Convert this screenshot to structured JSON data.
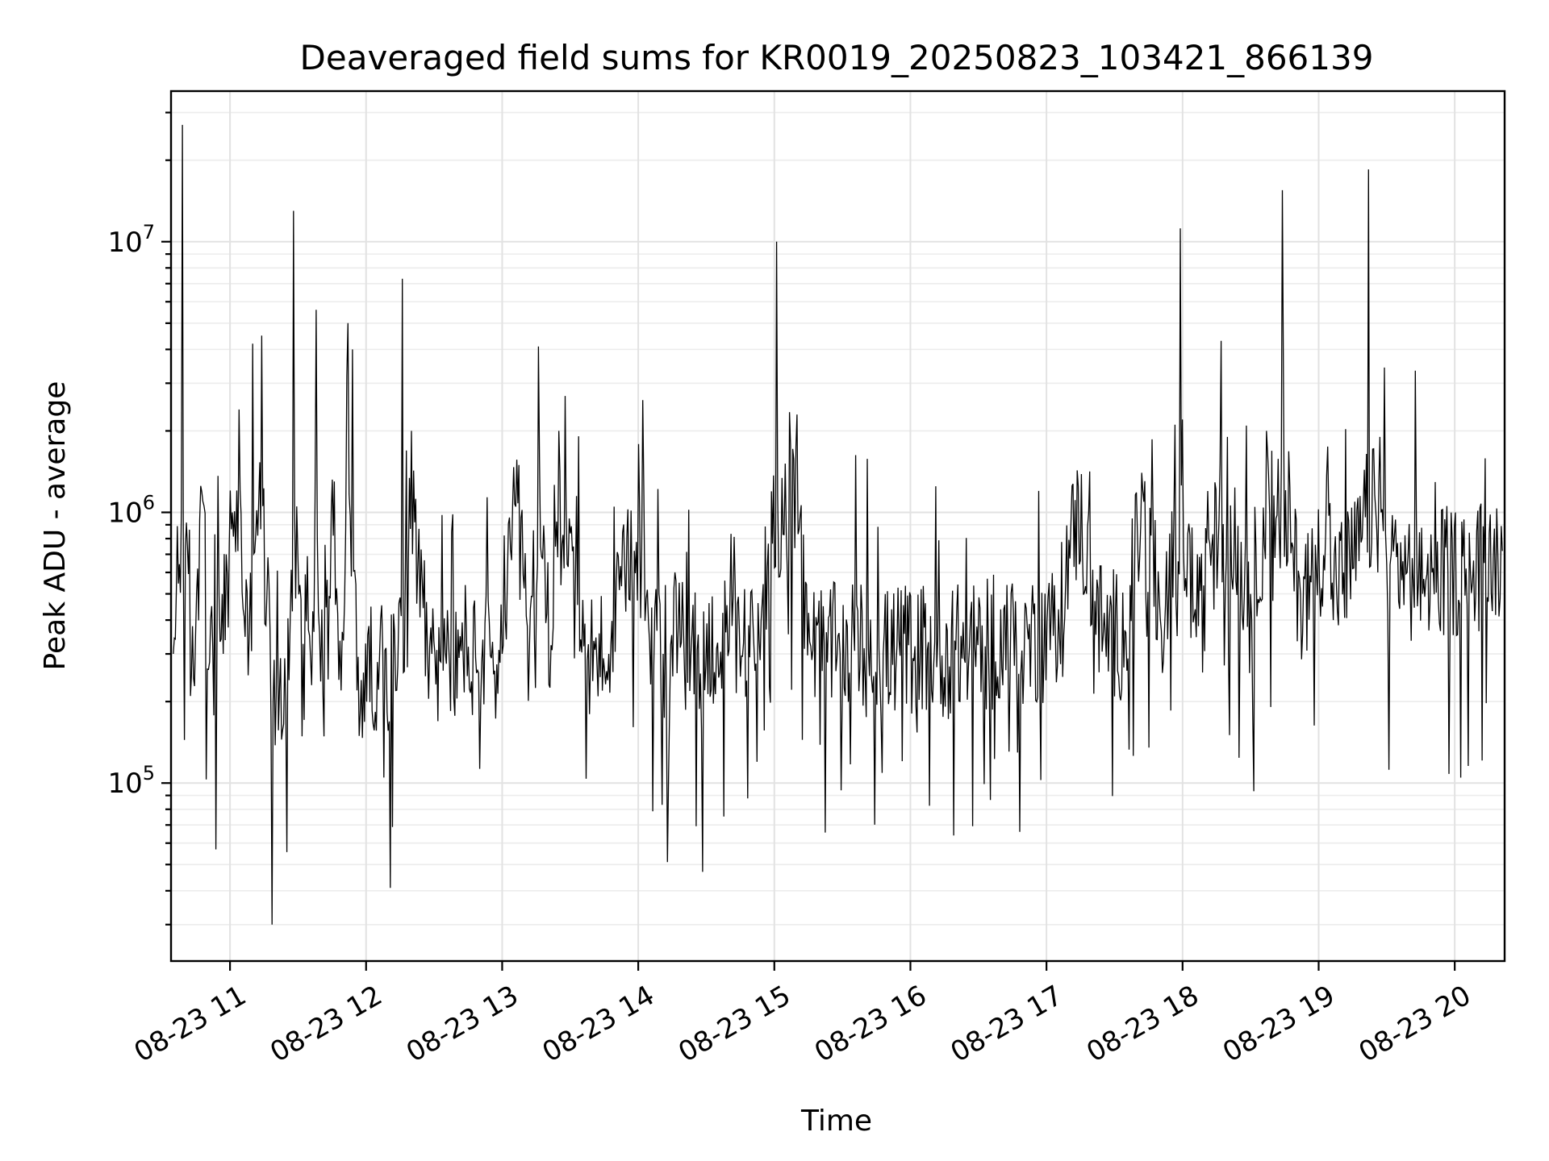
{
  "chart_data": {
    "type": "line",
    "title": "Deaveraged field sums for KR0019_20250823_103421_866139",
    "xlabel": "Time",
    "ylabel": "Peak ADU - average",
    "x_ticks": [
      "08-23 11",
      "08-23 12",
      "08-23 13",
      "08-23 14",
      "08-23 15",
      "08-23 16",
      "08-23 17",
      "08-23 18",
      "08-23 19",
      "08-23 20"
    ],
    "x_tick_hours": [
      11,
      12,
      13,
      14,
      15,
      16,
      17,
      18,
      19,
      20
    ],
    "y_ticks": [
      {
        "base": "10",
        "exp": "5",
        "value": 100000
      },
      {
        "base": "10",
        "exp": "6",
        "value": 1000000
      },
      {
        "base": "10",
        "exp": "7",
        "value": 10000000
      }
    ],
    "xlim": [
      "08-23 10:34",
      "08-23 20:22"
    ],
    "ylim": [
      22000,
      36000000
    ],
    "yscale": "log",
    "grid": true,
    "series": [
      {
        "color": "#000000",
        "x": [
          "10:35",
          "10:39",
          "10:43",
          "10:48",
          "10:51",
          "10:57",
          "11:01",
          "11:04",
          "11:08",
          "11:10",
          "11:14",
          "11:19",
          "11:26",
          "11:28",
          "11:36",
          "11:38",
          "11:41",
          "11:46",
          "11:49",
          "11:52",
          "11:54",
          "11:56",
          "12:05",
          "12:14",
          "12:16",
          "12:20",
          "12:29",
          "12:33",
          "12:34",
          "12:41",
          "12:51",
          "13:00",
          "13:06",
          "13:12",
          "13:16",
          "13:22",
          "13:25",
          "13:36",
          "13:39",
          "13:47",
          "14:02",
          "14:05",
          "14:11",
          "14:19",
          "14:26",
          "14:35",
          "14:40",
          "14:51",
          "15:01",
          "15:10",
          "15:17",
          "15:22",
          "15:29",
          "15:34",
          "15:48",
          "16:02",
          "16:13",
          "16:20",
          "16:33",
          "16:43",
          "16:52",
          "17:03",
          "17:14",
          "17:25",
          "17:35",
          "17:42",
          "17:52",
          "17:59",
          "18:07",
          "18:17",
          "18:30",
          "18:37",
          "18:44",
          "18:52",
          "18:59",
          "19:04",
          "19:06",
          "19:11",
          "19:15",
          "19:22",
          "19:27",
          "19:30",
          "19:32",
          "19:39",
          "19:44",
          "19:50",
          "19:57",
          "20:05",
          "20:13",
          "20:17",
          "20:19",
          "20:21"
        ],
        "y": [
          300000,
          27000000,
          250000,
          1100000,
          280000,
          300000,
          1000000,
          2400000,
          250000,
          4200000,
          4500000,
          200000,
          240000,
          13000000,
          230000,
          5600000,
          210000,
          1300000,
          220000,
          5000000,
          4000000,
          220000,
          280000,
          270000,
          7300000,
          2000000,
          300000,
          280000,
          260000,
          290000,
          280000,
          300000,
          1050000,
          310000,
          4100000,
          310000,
          2000000,
          320000,
          300000,
          300000,
          2600000,
          330000,
          300000,
          330000,
          310000,
          330000,
          310000,
          320000,
          10000000,
          2300000,
          310000,
          330000,
          300000,
          320000,
          300000,
          320000,
          300000,
          310000,
          320000,
          330000,
          340000,
          350000,
          1250000,
          350000,
          360000,
          1400000,
          360000,
          11200000,
          380000,
          4300000,
          500000,
          2000000,
          15500000,
          500000,
          600000,
          1750000,
          550000,
          600000,
          620000,
          18500000,
          1900000,
          650000,
          700000,
          600000,
          550000,
          600000,
          600000,
          620000,
          650000,
          680000,
          700000,
          720000
        ]
      }
    ]
  }
}
